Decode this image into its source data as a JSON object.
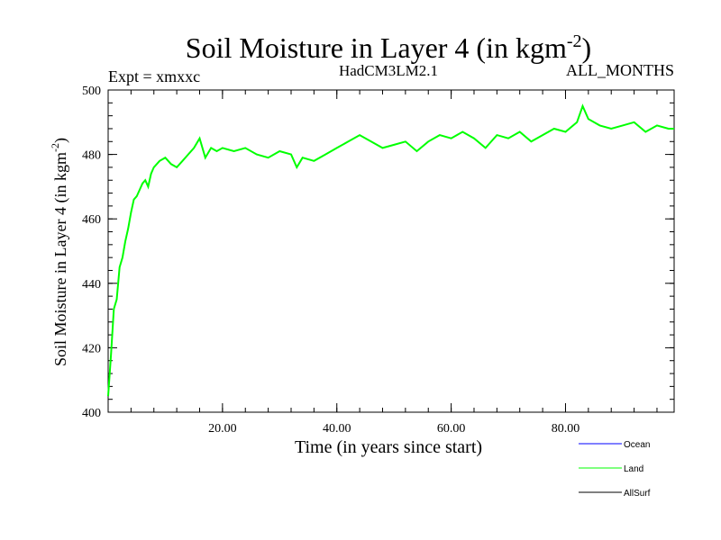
{
  "chart_data": {
    "type": "line",
    "title": "Soil Moisture in Layer 4 (in kgm",
    "title_sup": "-2",
    "title_end": ")",
    "subtitle_left": "Expt = xmxxc",
    "subtitle_center": "HadCM3LM2.1",
    "subtitle_right": "ALL_MONTHS",
    "xlabel": "Time (in years since start)",
    "ylabel": "Soil Moisture in Layer 4 (in kgm",
    "ylabel_sup": "-2",
    "ylabel_end": ")",
    "xlim": [
      0,
      99
    ],
    "ylim": [
      400,
      500
    ],
    "x_ticks": [
      20,
      40,
      60,
      80
    ],
    "x_tick_labels": [
      "20.00",
      "40.00",
      "60.00",
      "80.00"
    ],
    "y_ticks": [
      400,
      420,
      440,
      460,
      480,
      500
    ],
    "y_tick_labels": [
      "400",
      "420",
      "440",
      "460",
      "480",
      "500"
    ],
    "grid": false,
    "legend_position": "bottom-right",
    "series": [
      {
        "name": "Ocean",
        "color": "#0000ff",
        "x": [],
        "y": []
      },
      {
        "name": "Land",
        "color": "#00ff00",
        "x": [
          0,
          0.5,
          1,
          1.5,
          2,
          2.5,
          3,
          3.5,
          4,
          4.5,
          5,
          5.5,
          6,
          6.5,
          7,
          7.5,
          8,
          9,
          10,
          11,
          12,
          13,
          14,
          15,
          16,
          17,
          18,
          19,
          20,
          22,
          24,
          26,
          28,
          30,
          32,
          33,
          34,
          36,
          38,
          40,
          42,
          44,
          46,
          48,
          50,
          52,
          54,
          56,
          58,
          60,
          62,
          64,
          66,
          68,
          70,
          72,
          74,
          76,
          78,
          80,
          82,
          83,
          84,
          86,
          88,
          90,
          92,
          94,
          96,
          98,
          99
        ],
        "y": [
          405,
          418,
          432,
          435,
          445,
          448,
          453,
          457,
          462,
          466,
          467,
          469,
          471,
          472,
          470,
          474,
          476,
          478,
          479,
          477,
          476,
          478,
          480,
          482,
          485,
          479,
          482,
          481,
          482,
          481,
          482,
          480,
          479,
          481,
          480,
          476,
          479,
          478,
          480,
          482,
          484,
          486,
          484,
          482,
          483,
          484,
          481,
          484,
          486,
          485,
          487,
          485,
          482,
          486,
          485,
          487,
          484,
          486,
          488,
          487,
          490,
          495,
          491,
          489,
          488,
          489,
          490,
          487,
          489,
          488,
          488
        ]
      },
      {
        "name": "AllSurf",
        "color": "#000000",
        "x": [],
        "y": []
      }
    ]
  }
}
